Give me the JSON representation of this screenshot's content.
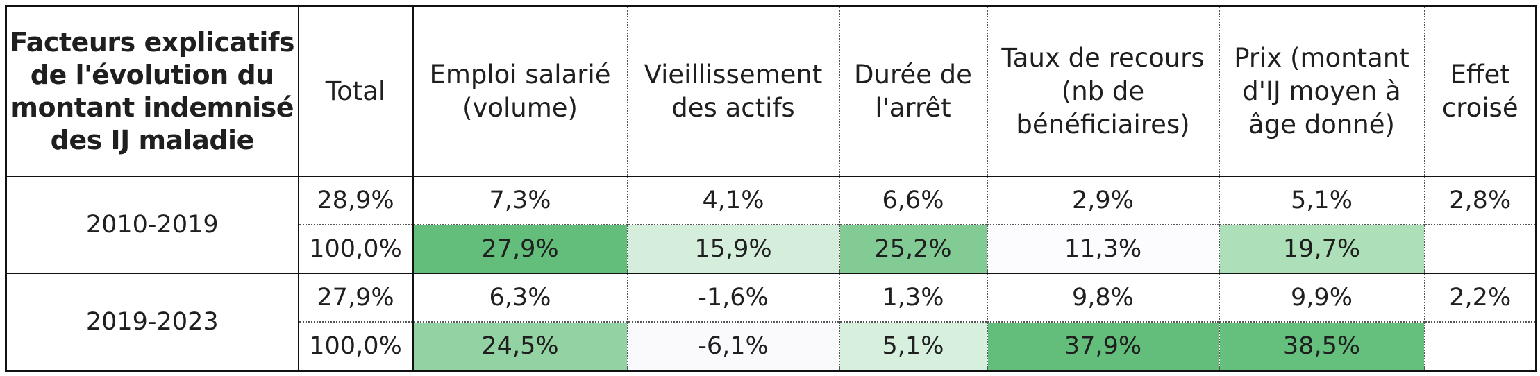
{
  "table": {
    "header": {
      "title": "Facteurs explicatifs de l'évolution du montant indemnisé des IJ maladie",
      "columns": [
        "Total",
        "Emploi salarié (volume)",
        "Vieillissement des actifs",
        "Durée de l'arrêt",
        "Taux de recours (nb de bénéficiaires)",
        "Prix (montant d'IJ moyen à âge donné)",
        "Effet croisé"
      ]
    },
    "periods": [
      {
        "label": "2010-2019",
        "rates": [
          "28,9%",
          "7,3%",
          "4,1%",
          "6,6%",
          "2,9%",
          "5,1%",
          "2,8%"
        ],
        "shares": [
          "100,0%",
          "27,9%",
          "15,9%",
          "25,2%",
          "11,3%",
          "19,7%",
          ""
        ]
      },
      {
        "label": "2019-2023",
        "rates": [
          "27,9%",
          "6,3%",
          "-1,6%",
          "1,3%",
          "9,8%",
          "9,9%",
          "2,2%"
        ],
        "shares": [
          "100,0%",
          "24,5%",
          "-6,1%",
          "5,1%",
          "37,9%",
          "38,5%",
          ""
        ]
      }
    ],
    "heat_colors": {
      "p0": [
        "#ffffff",
        "#63be7b",
        "#d5eedc",
        "#82cb95",
        "#fcfcff",
        "#ade0b9",
        "#ffffff"
      ],
      "p1": [
        "#ffffff",
        "#93d2a3",
        "#fafafd",
        "#d7efdd",
        "#63be7b",
        "#65bf7d",
        "#ffffff"
      ]
    }
  }
}
